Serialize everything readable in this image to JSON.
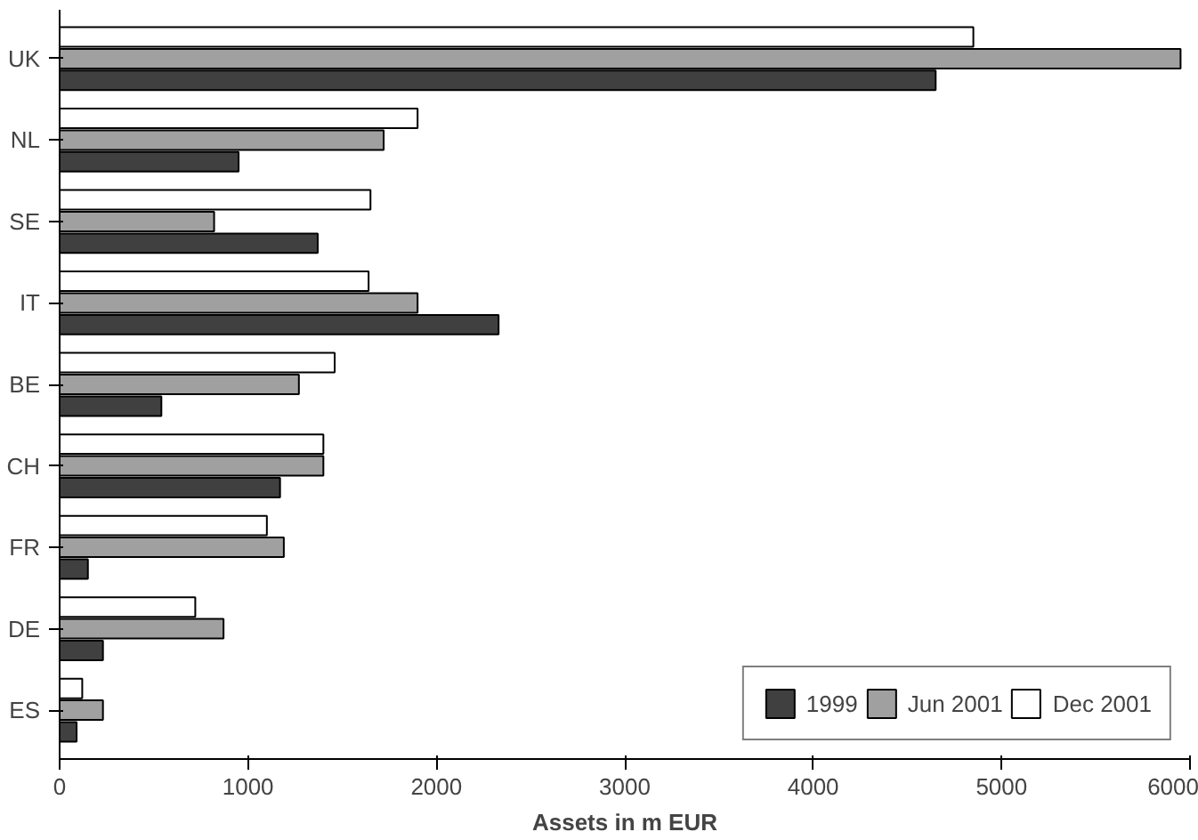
{
  "chart_data": {
    "type": "bar",
    "orientation": "horizontal",
    "xlabel": "Assets in m EUR",
    "categories": [
      "UK",
      "NL",
      "SE",
      "IT",
      "BE",
      "CH",
      "FR",
      "DE",
      "ES"
    ],
    "series": [
      {
        "name": "1999",
        "color": "#404040",
        "values": [
          4650,
          950,
          1370,
          2330,
          540,
          1170,
          150,
          230,
          90
        ]
      },
      {
        "name": "Jun 2001",
        "color": "#a0a0a0",
        "values": [
          5950,
          1720,
          820,
          1900,
          1270,
          1400,
          1190,
          870,
          230
        ]
      },
      {
        "name": "Dec 2001",
        "color": "#ffffff",
        "values": [
          4850,
          1900,
          1650,
          1640,
          1460,
          1400,
          1100,
          720,
          120
        ]
      }
    ],
    "xlim": [
      0,
      6000
    ],
    "xticks": [
      0,
      1000,
      2000,
      3000,
      4000,
      5000,
      6000
    ],
    "grid": false,
    "legend": "bottom right"
  }
}
